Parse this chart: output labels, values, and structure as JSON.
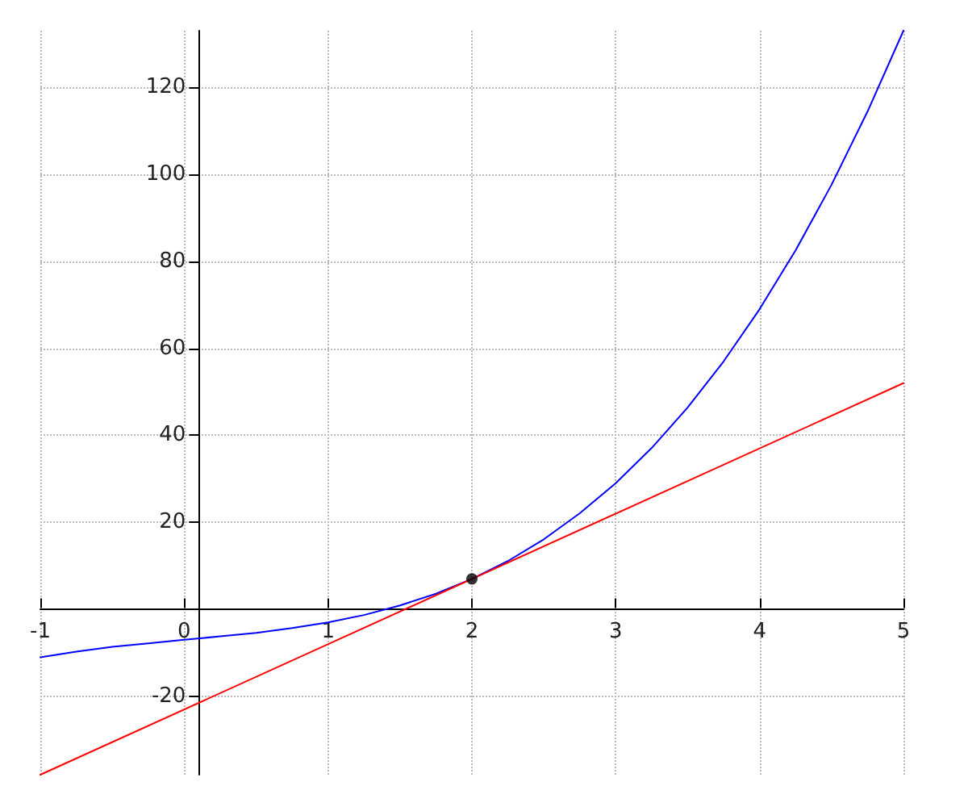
{
  "chart_data": {
    "type": "line",
    "xlim": [
      -1,
      5
    ],
    "xticks": [
      -1,
      0,
      1,
      2,
      3,
      4,
      5
    ],
    "ylim": [
      -38,
      133
    ],
    "yticks": [
      -20,
      {
        "value": 0,
        "label": null
      },
      20,
      40,
      60,
      80,
      100,
      120
    ],
    "grid": true,
    "line_style": "solid",
    "series": [
      {
        "color": "#0000ff",
        "marker": "none",
        "x": [
          -1,
          -0.75,
          -0.5,
          -0.25,
          0,
          0.25,
          0.5,
          0.75,
          1,
          1.25,
          1.5,
          1.75,
          2,
          2.25,
          2.5,
          2.75,
          3,
          3.25,
          3.5,
          3.75,
          4,
          4.25,
          4.5,
          4.75,
          5
        ],
        "values": [
          -11,
          -9.7,
          -8.6,
          -7.8,
          -7,
          -6.2,
          -5.4,
          -4.3,
          -3,
          -1.3,
          0.9,
          3.6,
          7,
          11.1,
          16.1,
          22.1,
          29,
          37.1,
          46.4,
          57,
          69,
          82.5,
          97.6,
          114.4,
          133
        ]
      },
      {
        "color": "#ff0000",
        "marker": "none",
        "x": [
          -1,
          5
        ],
        "values": [
          -38,
          52
        ]
      },
      {
        "type": "scatter",
        "color": "#000000",
        "marker": "circle",
        "x": [
          2
        ],
        "values": [
          7
        ]
      }
    ]
  }
}
